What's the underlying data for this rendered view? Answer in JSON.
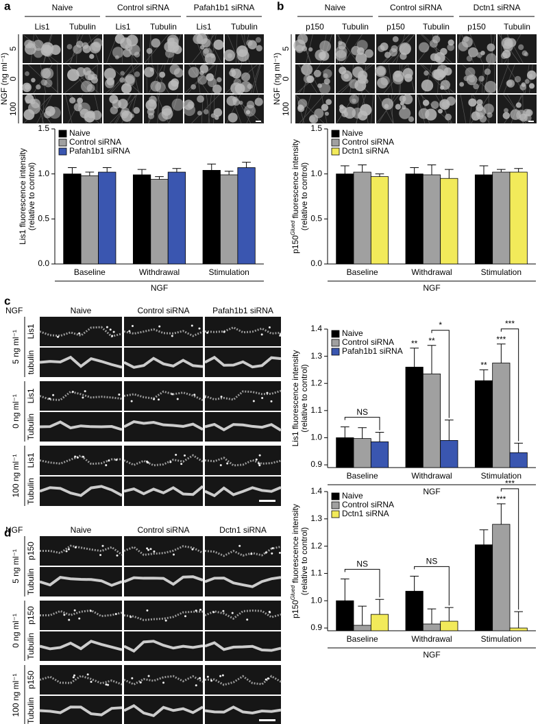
{
  "panels": {
    "a": {
      "columns": [
        "Naive",
        "Control siRNA",
        "Pafah1b1 siRNA"
      ],
      "subcolumns": [
        "Lis1",
        "Tubulin"
      ],
      "row_title": "NGF (ng ml⁻¹)",
      "rows": [
        "5",
        "0",
        "100"
      ]
    },
    "b": {
      "columns": [
        "Naive",
        "Control siRNA",
        "Dctn1 siRNA"
      ],
      "subcolumns": [
        "p150",
        "Tubulin"
      ],
      "row_title": "NGF (ng ml⁻¹)",
      "rows": [
        "5",
        "0",
        "100"
      ]
    },
    "c": {
      "row_title": "NGF",
      "columns": [
        "Naive",
        "Control siRNA",
        "Pafah1b1 siRNA"
      ],
      "rows": [
        "5 ng ml⁻¹",
        "0 ng ml⁻¹",
        "100 ng ml⁻¹"
      ],
      "channels": [
        "Lis1",
        "tubulin",
        "Lis1",
        "Tubulin",
        "Lis1",
        "Tubulin"
      ]
    },
    "d": {
      "row_title": "NGF",
      "columns": [
        "Naive",
        "Control siRNA",
        "Dctn1 siRNA"
      ],
      "rows": [
        "5 ng ml⁻¹",
        "0 ng ml⁻¹",
        "100 ng ml⁻¹"
      ],
      "channels": [
        "p150",
        "Tubulin",
        "p150",
        "Tubulin",
        "p150",
        "Tubulin"
      ]
    }
  },
  "chart_data": [
    {
      "type": "bar",
      "label": "a",
      "categories": [
        "Baseline",
        "Withdrawal",
        "Stimulation"
      ],
      "xlabel": "NGF",
      "ylabel": [
        [
          "Lis1 fluorescence intensity"
        ],
        [
          "(relative to control)"
        ]
      ],
      "ylim": [
        0,
        1.5
      ],
      "yticks": [
        {
          "value": 0,
          "label": "0.0"
        },
        0.5,
        {
          "value": 1,
          "label": "1.0"
        },
        1.5
      ],
      "series": [
        {
          "name": "Naive",
          "color": "#000000",
          "values": [
            1.0,
            0.99,
            1.04
          ],
          "errors": [
            0.07,
            0.06,
            0.07
          ]
        },
        {
          "name": "Control siRNA",
          "color": "#a0a0a0",
          "values": [
            0.98,
            0.94,
            0.99
          ],
          "errors": [
            0.04,
            0.03,
            0.04
          ]
        },
        {
          "name": "Pafah1b1 siRNA",
          "color": "#3a56b0",
          "values": [
            1.02,
            1.02,
            1.07
          ],
          "errors": [
            0.05,
            0.04,
            0.06
          ]
        }
      ],
      "annotations": []
    },
    {
      "type": "bar",
      "label": "b",
      "categories": [
        "Baseline",
        "Withdrawal",
        "Stimulation"
      ],
      "xlabel": "NGF",
      "ylabel": [
        [
          "p150",
          "Glued",
          " fluorescence intensity"
        ],
        [
          "(relative to control)"
        ]
      ],
      "ylim": [
        0,
        1.5
      ],
      "yticks": [
        {
          "value": 0,
          "label": "0.0"
        },
        0.5,
        {
          "value": 1,
          "label": "1.0"
        },
        1.5
      ],
      "series": [
        {
          "name": "Naive",
          "color": "#000000",
          "values": [
            1.0,
            1.0,
            0.99
          ],
          "errors": [
            0.09,
            0.07,
            0.1
          ]
        },
        {
          "name": "Control siRNA",
          "color": "#a0a0a0",
          "values": [
            1.02,
            0.99,
            1.02
          ],
          "errors": [
            0.08,
            0.11,
            0.03
          ]
        },
        {
          "name": "Dctn1 siRNA",
          "color": "#f2ea5a",
          "values": [
            0.97,
            0.95,
            1.02
          ],
          "errors": [
            0.03,
            0.1,
            0.04
          ]
        }
      ],
      "annotations": []
    },
    {
      "type": "bar",
      "label": "c",
      "categories": [
        "Baseline",
        "Withdrawal",
        "Stimulation"
      ],
      "xlabel": "NGF",
      "ylabel": [
        [
          "Lis1 fluorescence intensity"
        ],
        [
          "(relative to control)"
        ]
      ],
      "ylim": [
        0.89,
        1.4
      ],
      "yticks": [
        0.9,
        {
          "value": 1,
          "label": "1.0"
        },
        1.1,
        1.2,
        1.3,
        1.4
      ],
      "series": [
        {
          "name": "Naive",
          "color": "#000000",
          "values": [
            1.0,
            1.26,
            1.21
          ],
          "errors": [
            0.04,
            0.07,
            0.04
          ]
        },
        {
          "name": "Control siRNA",
          "color": "#a0a0a0",
          "values": [
            0.997,
            1.235,
            1.275
          ],
          "errors": [
            0.04,
            0.105,
            0.07
          ]
        },
        {
          "name": "Pafah1b1 siRNA",
          "color": "#3a56b0",
          "values": [
            0.985,
            0.99,
            0.945
          ],
          "errors": [
            0.035,
            0.075,
            0.035
          ]
        }
      ],
      "annotations": [
        "NS",
        "**",
        "**",
        "*",
        "**",
        "***",
        "***"
      ]
    },
    {
      "type": "bar",
      "label": "d",
      "categories": [
        "Baseline",
        "Withdrawal",
        "Stimulation"
      ],
      "xlabel": "NGF",
      "ylabel": [
        [
          "p150",
          "Glued",
          " fluorescence intensity"
        ],
        [
          "(relative to control)"
        ]
      ],
      "ylim": [
        0.89,
        1.4
      ],
      "yticks": [
        0.9,
        {
          "value": 1,
          "label": "1.0"
        },
        1.1,
        1.2,
        1.3,
        1.4
      ],
      "series": [
        {
          "name": "Naive",
          "color": "#000000",
          "values": [
            1.0,
            1.035,
            1.205
          ],
          "errors": [
            0.08,
            0.055,
            0.055
          ]
        },
        {
          "name": "Control siRNA",
          "color": "#a0a0a0",
          "values": [
            0.91,
            0.915,
            1.28
          ],
          "errors": [
            0.07,
            0.055,
            0.075
          ]
        },
        {
          "name": "Dctn1 siRNA",
          "color": "#f2ea5a",
          "values": [
            0.95,
            0.925,
            0.9
          ],
          "errors": [
            0.055,
            0.05,
            0.06
          ]
        }
      ],
      "annotations": [
        "NS",
        "NS",
        "***",
        "***"
      ]
    }
  ]
}
